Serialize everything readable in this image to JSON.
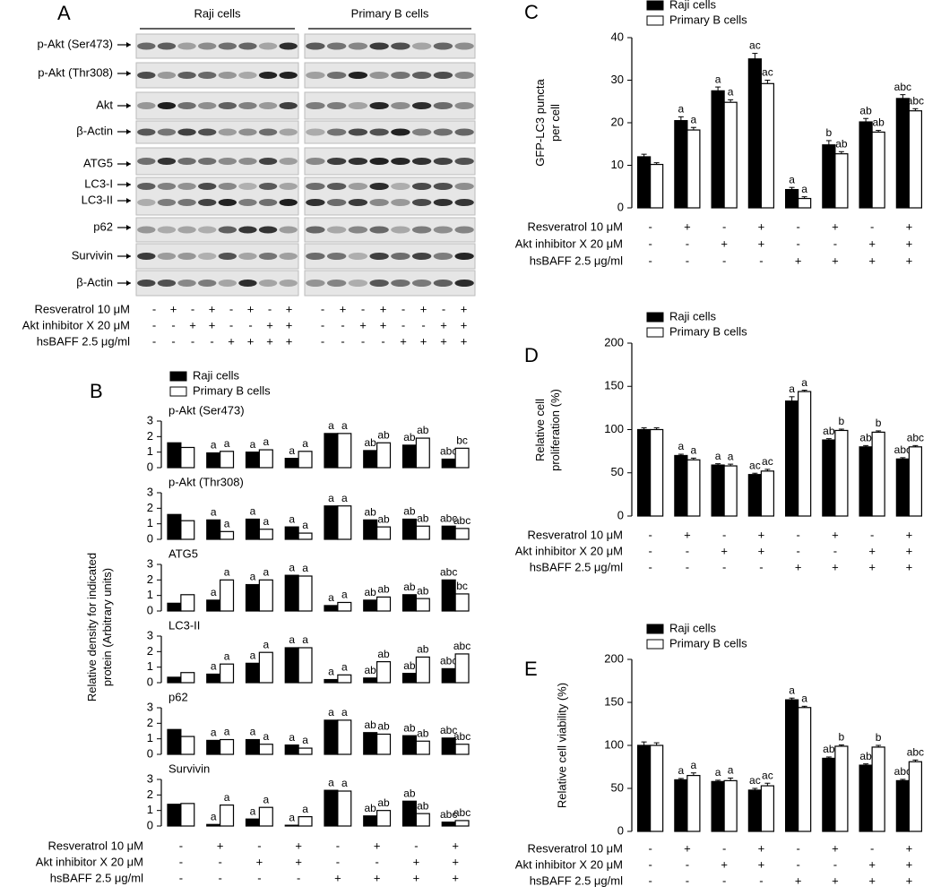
{
  "blot": {
    "label": "A",
    "groups": [
      "Raji cells",
      "Primary B cells"
    ],
    "proteins": [
      "p-Akt (Ser473)",
      "p-Akt (Thr308)",
      "Akt",
      "β-Actin",
      "ATG5",
      "LC3-I",
      "LC3-II",
      "p62",
      "Survivin",
      "β-Actin"
    ],
    "treatments": [
      {
        "label": "Resveratrol 10 μM",
        "signs": [
          "-",
          "+",
          "-",
          "+",
          "-",
          "+",
          "-",
          "+",
          "-",
          "+",
          "-",
          "+",
          "-",
          "+",
          "-",
          "+"
        ]
      },
      {
        "label": "Akt inhibitor X 20 μM",
        "signs": [
          "-",
          "-",
          "+",
          "+",
          "-",
          "-",
          "+",
          "+",
          "-",
          "-",
          "+",
          "+",
          "-",
          "-",
          "+",
          "+"
        ]
      },
      {
        "label": "hsBAFF 2.5 μg/ml",
        "signs": [
          "-",
          "-",
          "-",
          "-",
          "+",
          "+",
          "+",
          "+",
          "-",
          "-",
          "-",
          "-",
          "+",
          "+",
          "+",
          "+"
        ]
      }
    ]
  },
  "chart_data": [
    {
      "type": "bar",
      "panel_label": "B",
      "title": "p-Akt (Ser473)",
      "y_label": [
        "Relative density for indicated",
        "protein (Arbitrary units)"
      ],
      "ylim": [
        0,
        3
      ],
      "yticks": [
        0,
        1,
        2,
        3
      ],
      "series": [
        {
          "name": "Raji cells",
          "color": "#000000",
          "values": [
            1.6,
            0.95,
            1.0,
            0.6,
            2.2,
            1.1,
            1.45,
            0.55
          ],
          "annotations": [
            null,
            "a",
            "a",
            "a",
            "a",
            "ab",
            "ab",
            "abc"
          ]
        },
        {
          "name": "Primary B cells",
          "color": "#ffffff",
          "values": [
            1.3,
            1.05,
            1.15,
            1.05,
            2.2,
            1.6,
            1.9,
            1.25
          ],
          "annotations": [
            null,
            "a",
            "a",
            "a",
            "a",
            "ab",
            "ab",
            "bc"
          ]
        }
      ]
    },
    {
      "type": "bar",
      "title": "p-Akt (Thr308)",
      "ylim": [
        0,
        3
      ],
      "yticks": [
        0,
        1,
        2,
        3
      ],
      "series": [
        {
          "color": "#000000",
          "values": [
            1.6,
            1.25,
            1.3,
            0.8,
            2.15,
            1.25,
            1.3,
            0.85
          ],
          "annotations": [
            null,
            "a",
            "a",
            "a",
            "a",
            "ab",
            "ab",
            "abc"
          ]
        },
        {
          "color": "#ffffff",
          "values": [
            1.2,
            0.5,
            0.65,
            0.4,
            2.15,
            0.8,
            0.85,
            0.7
          ],
          "annotations": [
            null,
            "a",
            "a",
            "a",
            "a",
            "ab",
            "ab",
            "abc"
          ]
        }
      ]
    },
    {
      "type": "bar",
      "title": "ATG5",
      "ylim": [
        0,
        3
      ],
      "yticks": [
        0,
        1,
        2,
        3
      ],
      "series": [
        {
          "color": "#000000",
          "values": [
            0.5,
            0.7,
            1.7,
            2.3,
            0.35,
            0.7,
            1.05,
            2.0
          ],
          "annotations": [
            null,
            "a",
            "a",
            "a",
            "a",
            "ab",
            "ab",
            "abc"
          ]
        },
        {
          "color": "#ffffff",
          "values": [
            1.05,
            2.0,
            2.0,
            2.25,
            0.55,
            0.9,
            0.8,
            1.1
          ],
          "annotations": [
            null,
            "a",
            "a",
            "a",
            "a",
            "ab",
            "ab",
            "bc"
          ]
        }
      ]
    },
    {
      "type": "bar",
      "title": "LC3-II",
      "ylim": [
        0,
        3
      ],
      "yticks": [
        0,
        1,
        2,
        3
      ],
      "series": [
        {
          "color": "#000000",
          "values": [
            0.35,
            0.55,
            1.25,
            2.25,
            0.2,
            0.3,
            0.6,
            0.9
          ],
          "annotations": [
            null,
            "a",
            "a",
            "a",
            "a",
            "ab",
            "ab",
            "abc"
          ]
        },
        {
          "color": "#ffffff",
          "values": [
            0.65,
            1.2,
            1.95,
            2.25,
            0.5,
            1.35,
            1.65,
            1.85
          ],
          "annotations": [
            null,
            "a",
            "a",
            "a",
            "a",
            "ab",
            "ab",
            "abc"
          ]
        }
      ]
    },
    {
      "type": "bar",
      "title": "p62",
      "ylim": [
        0,
        3
      ],
      "yticks": [
        0,
        1,
        2,
        3
      ],
      "series": [
        {
          "color": "#000000",
          "values": [
            1.6,
            0.9,
            0.95,
            0.6,
            2.2,
            1.4,
            1.2,
            1.05
          ],
          "annotations": [
            null,
            "a",
            "a",
            "a",
            "a",
            "ab",
            "ab",
            "abc"
          ]
        },
        {
          "color": "#ffffff",
          "values": [
            1.15,
            0.95,
            0.65,
            0.4,
            2.2,
            1.3,
            0.85,
            0.65
          ],
          "annotations": [
            null,
            "a",
            "a",
            "a",
            "a",
            "ab",
            "ab",
            "abc"
          ]
        }
      ]
    },
    {
      "type": "bar",
      "title": "Survivin",
      "ylim": [
        0,
        3
      ],
      "yticks": [
        0,
        1,
        2,
        3
      ],
      "treatments": [
        {
          "label": "Resveratrol 10 μM",
          "signs": [
            "-",
            "+",
            "-",
            "+",
            "-",
            "+",
            "-",
            "+"
          ]
        },
        {
          "label": "Akt inhibitor X 20 μM",
          "signs": [
            "-",
            "-",
            "+",
            "+",
            "-",
            "-",
            "+",
            "+"
          ]
        },
        {
          "label": "hsBAFF 2.5 μg/ml",
          "signs": [
            "-",
            "-",
            "-",
            "-",
            "+",
            "+",
            "+",
            "+"
          ]
        }
      ],
      "series": [
        {
          "color": "#000000",
          "values": [
            1.4,
            0.1,
            0.45,
            0.05,
            2.3,
            0.65,
            1.6,
            0.25
          ],
          "annotations": [
            null,
            "a",
            "a",
            "a",
            "a",
            "ab",
            "ab",
            "abc"
          ]
        },
        {
          "color": "#ffffff",
          "values": [
            1.45,
            1.35,
            1.2,
            0.6,
            2.25,
            1.0,
            0.8,
            0.35
          ],
          "annotations": [
            null,
            "a",
            "a",
            "a",
            "a",
            "ab",
            "ab",
            "abc"
          ]
        }
      ]
    },
    {
      "type": "bar",
      "panel_label": "C",
      "y_label": [
        "GFP-LC3 puncta",
        "per cell"
      ],
      "ylim": [
        0,
        40
      ],
      "yticks": [
        0,
        10,
        20,
        30,
        40
      ],
      "treatments": [
        {
          "label": "Resveratrol 10 μM",
          "signs": [
            "-",
            "+",
            "-",
            "+",
            "-",
            "+",
            "-",
            "+"
          ]
        },
        {
          "label": "Akt inhibitor X 20 μM",
          "signs": [
            "-",
            "-",
            "+",
            "+",
            "-",
            "-",
            "+",
            "+"
          ]
        },
        {
          "label": "hsBAFF 2.5 μg/ml",
          "signs": [
            "-",
            "-",
            "-",
            "-",
            "+",
            "+",
            "+",
            "+"
          ]
        }
      ],
      "series": [
        {
          "name": "Raji cells",
          "color": "#000000",
          "values": [
            12,
            20.5,
            27.5,
            35,
            4.3,
            14.8,
            20.2,
            25.7
          ],
          "errors": [
            0.6,
            0.9,
            0.9,
            1.3,
            0.5,
            1.0,
            0.8,
            0.9
          ],
          "annotations": [
            null,
            "a",
            "a",
            "ac",
            "a",
            "b",
            "ab",
            "abc"
          ]
        },
        {
          "name": "Primary B cells",
          "color": "#ffffff",
          "values": [
            10.2,
            18.3,
            24.8,
            29.2,
            2.2,
            12.7,
            17.8,
            22.8
          ],
          "errors": [
            0.4,
            0.6,
            0.6,
            0.8,
            0.4,
            0.5,
            0.4,
            0.5
          ],
          "annotations": [
            null,
            "a",
            "a",
            "ac",
            "a",
            "ab",
            "ab",
            "abc"
          ]
        }
      ]
    },
    {
      "type": "bar",
      "panel_label": "D",
      "y_label": [
        "Relative cell",
        "proliferation (%)"
      ],
      "ylim": [
        0,
        200
      ],
      "yticks": [
        0,
        50,
        100,
        150,
        200
      ],
      "treatments": [
        {
          "label": "Resveratrol 10 μM",
          "signs": [
            "-",
            "+",
            "-",
            "+",
            "-",
            "+",
            "-",
            "+"
          ]
        },
        {
          "label": "Akt inhibitor X 20 μM",
          "signs": [
            "-",
            "-",
            "+",
            "+",
            "-",
            "-",
            "+",
            "+"
          ]
        },
        {
          "label": "hsBAFF 2.5 μg/ml",
          "signs": [
            "-",
            "-",
            "-",
            "-",
            "+",
            "+",
            "+",
            "+"
          ]
        }
      ],
      "series": [
        {
          "name": "Raji cells",
          "color": "#000000",
          "values": [
            100,
            70,
            59,
            48,
            133,
            88,
            80,
            66
          ],
          "errors": [
            2,
            1.5,
            1.5,
            1.5,
            5,
            1.5,
            1.5,
            1.5
          ],
          "annotations": [
            null,
            "a",
            "a",
            "ac",
            "a",
            "ab",
            "ab",
            "abc"
          ]
        },
        {
          "name": "Primary B cells",
          "color": "#ffffff",
          "values": [
            100,
            65,
            58,
            52,
            144,
            99,
            97,
            80
          ],
          "errors": [
            2,
            2,
            2,
            2,
            1.5,
            1.5,
            1.5,
            1.5
          ],
          "annotations": [
            null,
            "a",
            "a",
            "ac",
            "a",
            "b",
            "b",
            "abc"
          ]
        }
      ]
    },
    {
      "type": "bar",
      "panel_label": "E",
      "y_label": [
        "Relative cell viability (%)"
      ],
      "ylim": [
        0,
        200
      ],
      "yticks": [
        0,
        50,
        100,
        150,
        200
      ],
      "treatments": [
        {
          "label": "Resveratrol 10 μM",
          "signs": [
            "-",
            "+",
            "-",
            "+",
            "-",
            "+",
            "-",
            "+"
          ]
        },
        {
          "label": "Akt inhibitor X 20 μM",
          "signs": [
            "-",
            "-",
            "+",
            "+",
            "-",
            "-",
            "+",
            "+"
          ]
        },
        {
          "label": "hsBAFF 2.5 μg/ml",
          "signs": [
            "-",
            "-",
            "-",
            "-",
            "+",
            "+",
            "+",
            "+"
          ]
        }
      ],
      "series": [
        {
          "name": "Raji cells",
          "color": "#000000",
          "values": [
            100,
            60,
            58,
            48,
            153,
            85,
            77,
            59
          ],
          "errors": [
            4,
            1.5,
            1.5,
            2,
            2,
            1.5,
            1.5,
            1.5
          ],
          "annotations": [
            null,
            "a",
            "a",
            "ac",
            "a",
            "ab",
            "ab",
            "abc"
          ]
        },
        {
          "name": "Primary B cells",
          "color": "#ffffff",
          "values": [
            100,
            65,
            59,
            53,
            144,
            99,
            98,
            81
          ],
          "errors": [
            3,
            3,
            3,
            3,
            1.5,
            1.5,
            2,
            2
          ],
          "annotations": [
            null,
            "a",
            "a",
            "ac",
            "a",
            "b",
            "b",
            "abc"
          ]
        }
      ]
    }
  ]
}
